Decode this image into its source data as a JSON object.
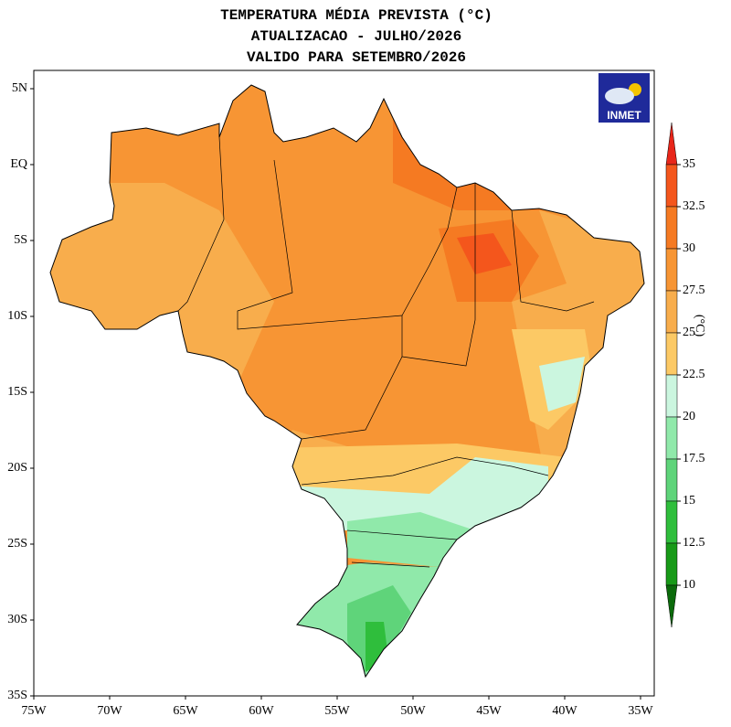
{
  "header": {
    "title": [
      "TEMPERATURA MÉDIA PREVISTA (°C)",
      "ATUALIZACAO - JULHO/2026",
      "VALIDO PARA SETEMBRO/2026"
    ]
  },
  "map": {
    "lat_labels": [
      "5N",
      "EQ",
      "5S",
      "10S",
      "15S",
      "20S",
      "25S",
      "30S",
      "35S"
    ],
    "lon_labels": [
      "75W",
      "70W",
      "65W",
      "60W",
      "55W",
      "50W",
      "45W",
      "40W",
      "35W"
    ]
  },
  "colorbar": {
    "levels": [
      35,
      32.5,
      30,
      27.5,
      25,
      22.5,
      20,
      17.5,
      15,
      12.5,
      10
    ],
    "colors": [
      "#e8261a",
      "#f4561c",
      "#f57a22",
      "#f79534",
      "#f8ad4c",
      "#fcc965",
      "#cbf6df",
      "#90e9aa",
      "#5fd47a",
      "#2fbe3c",
      "#189a18",
      "#0b6a0b"
    ],
    "unit": "(°C)"
  },
  "logo": "INMET"
}
